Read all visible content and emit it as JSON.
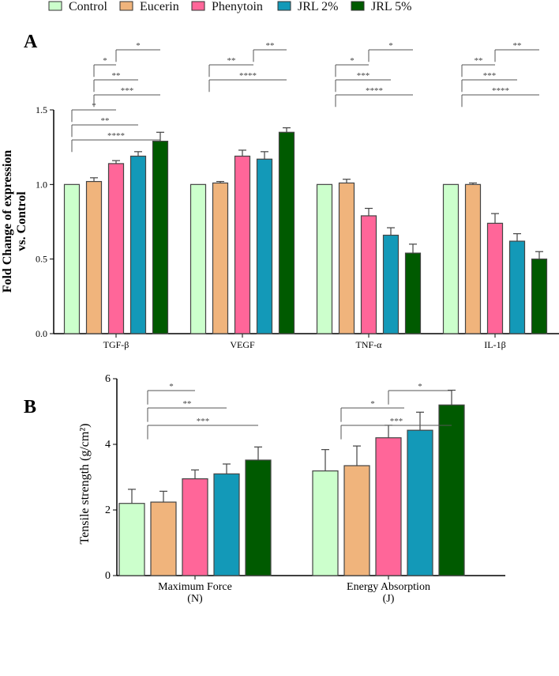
{
  "legend": [
    {
      "label": "Control",
      "color": "#ccffcc"
    },
    {
      "label": "Eucerin",
      "color": "#f0b47c"
    },
    {
      "label": "Phenytoin",
      "color": "#ff6699"
    },
    {
      "label": "JRL 2%",
      "color": "#1399b8"
    },
    {
      "label": "JRL 5%",
      "color": "#005a00"
    }
  ],
  "chart_data": [
    {
      "panel": "A",
      "type": "bar",
      "ylabel": [
        "Fold Change of expression",
        "vs. Control"
      ],
      "ylim": [
        0,
        1.5
      ],
      "yticks": [
        "0.0",
        "0.5",
        "1.0",
        "1.5"
      ],
      "ytick_values": [
        0,
        0.5,
        1.0,
        1.5
      ],
      "categories": [
        "TGF-β",
        "VEGF",
        "TNF-α",
        "IL-1β"
      ],
      "series": [
        {
          "name": "Control",
          "values": [
            1.0,
            1.0,
            1.0,
            1.0
          ],
          "errors": [
            0,
            0,
            0,
            0
          ]
        },
        {
          "name": "Eucerin",
          "values": [
            1.02,
            1.01,
            1.01,
            1.0
          ],
          "errors": [
            0.025,
            0.01,
            0.025,
            0.01
          ]
        },
        {
          "name": "Phenytoin",
          "values": [
            1.14,
            1.19,
            0.79,
            0.74
          ],
          "errors": [
            0.02,
            0.04,
            0.05,
            0.065
          ]
        },
        {
          "name": "JRL 2%",
          "values": [
            1.19,
            1.17,
            0.66,
            0.62
          ],
          "errors": [
            0.03,
            0.05,
            0.05,
            0.05
          ]
        },
        {
          "name": "JRL 5%",
          "values": [
            1.29,
            1.35,
            0.54,
            0.5
          ],
          "errors": [
            0.06,
            0.03,
            0.06,
            0.05
          ]
        }
      ],
      "significance": [
        {
          "category": "TGF-β",
          "from": "Control",
          "to": "JRL 5%",
          "label": "****"
        },
        {
          "category": "TGF-β",
          "from": "Control",
          "to": "JRL 2%",
          "label": "**"
        },
        {
          "category": "TGF-β",
          "from": "Control",
          "to": "Phenytoin",
          "label": "*"
        },
        {
          "category": "TGF-β",
          "from": "Eucerin",
          "to": "JRL 5%",
          "label": "***"
        },
        {
          "category": "TGF-β",
          "from": "Eucerin",
          "to": "JRL 2%",
          "label": "**"
        },
        {
          "category": "TGF-β",
          "from": "Eucerin",
          "to": "Phenytoin",
          "label": "*"
        },
        {
          "category": "TGF-β",
          "from": "Phenytoin",
          "to": "JRL 5%",
          "label": "*"
        },
        {
          "category": "VEGF",
          "from": "Control+Eucerin",
          "to": "JRL 5%",
          "label": "****"
        },
        {
          "category": "VEGF",
          "from": "Control+Eucerin",
          "to": "Phenytoin+JRL 2%",
          "label": "**"
        },
        {
          "category": "VEGF",
          "from": "Phenytoin+JRL 2%",
          "to": "JRL 5%",
          "label": "**"
        },
        {
          "category": "TNF-α",
          "from": "Control+Eucerin",
          "to": "JRL 5%",
          "label": "****"
        },
        {
          "category": "TNF-α",
          "from": "Control+Eucerin",
          "to": "JRL 2%",
          "label": "***"
        },
        {
          "category": "TNF-α",
          "from": "Control+Eucerin",
          "to": "Phenytoin",
          "label": "*"
        },
        {
          "category": "TNF-α",
          "from": "Phenytoin",
          "to": "JRL 5%",
          "label": "*"
        },
        {
          "category": "IL-1β",
          "from": "Control+Eucerin",
          "to": "JRL 5%",
          "label": "****"
        },
        {
          "category": "IL-1β",
          "from": "Control+Eucerin",
          "to": "JRL 2%",
          "label": "***"
        },
        {
          "category": "IL-1β",
          "from": "Control+Eucerin",
          "to": "Phenytoin",
          "label": "**"
        },
        {
          "category": "IL-1β",
          "from": "Phenytoin",
          "to": "JRL 5%",
          "label": "**"
        }
      ]
    },
    {
      "panel": "B",
      "type": "bar",
      "ylabel": "Tensile strength (g/cm²)",
      "ylim": [
        0,
        6
      ],
      "yticks": [
        "0",
        "2",
        "4",
        "6"
      ],
      "ytick_values": [
        0,
        2,
        4,
        6
      ],
      "categories": [
        [
          "Maximum Force",
          "(N)"
        ],
        [
          "Energy Absorption",
          "(J)"
        ]
      ],
      "series": [
        {
          "name": "Control",
          "values": [
            2.2,
            3.19
          ],
          "errors": [
            0.43,
            0.65
          ]
        },
        {
          "name": "Eucerin",
          "values": [
            2.24,
            3.35
          ],
          "errors": [
            0.33,
            0.6
          ]
        },
        {
          "name": "Phenytoin",
          "values": [
            2.95,
            4.2
          ],
          "errors": [
            0.27,
            0.38
          ]
        },
        {
          "name": "JRL 2%",
          "values": [
            3.1,
            4.43
          ],
          "errors": [
            0.3,
            0.55
          ]
        },
        {
          "name": "JRL 5%",
          "values": [
            3.52,
            5.2
          ],
          "errors": [
            0.4,
            0.45
          ]
        }
      ],
      "significance": [
        {
          "category": "Maximum Force",
          "from": "Control+Eucerin",
          "to": "JRL 5%",
          "label": "***"
        },
        {
          "category": "Maximum Force",
          "from": "Control+Eucerin",
          "to": "JRL 2%",
          "label": "**"
        },
        {
          "category": "Maximum Force",
          "from": "Control+Eucerin",
          "to": "Phenytoin",
          "label": "*"
        },
        {
          "category": "Energy Absorption",
          "from": "Control+Eucerin",
          "to": "JRL 5%",
          "label": "***"
        },
        {
          "category": "Energy Absorption",
          "from": "Control+Eucerin",
          "to": "Phenytoin+JRL 2%",
          "label": "*"
        },
        {
          "category": "Energy Absorption",
          "from": "Phenytoin",
          "to": "JRL 5%",
          "label": "*"
        }
      ]
    }
  ]
}
